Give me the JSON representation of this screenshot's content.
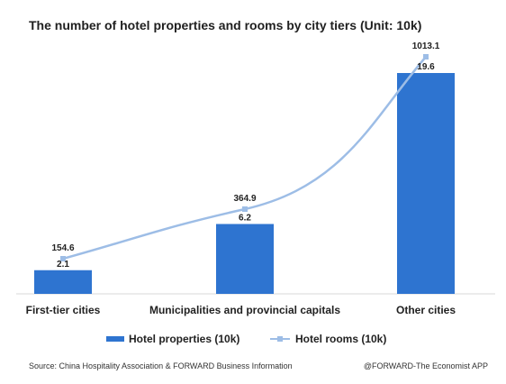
{
  "title": "The number of hotel properties and rooms by city tiers (Unit: 10k)",
  "chart_data": {
    "type": "bar",
    "categories": [
      "First-tier cities",
      "Municipalities and provincial capitals",
      "Other cities"
    ],
    "series": [
      {
        "name": "Hotel properties (10k)",
        "type": "bar",
        "values": [
          2.1,
          6.2,
          19.6
        ],
        "labels": [
          "2.1",
          "6.2",
          "19.6"
        ],
        "color": "#2e74d0"
      },
      {
        "name": "Hotel rooms (10k)",
        "type": "line",
        "values": [
          154.6,
          364.9,
          1013.1
        ],
        "labels": [
          "154.6",
          "364.9",
          "1013.1"
        ],
        "color": "#9dbde6"
      }
    ],
    "legend": "bottom",
    "grid": false
  },
  "footer": {
    "source": "Source: China Hospitality Association & FORWARD Business Information",
    "credit": "@FORWARD-The Economist APP"
  }
}
